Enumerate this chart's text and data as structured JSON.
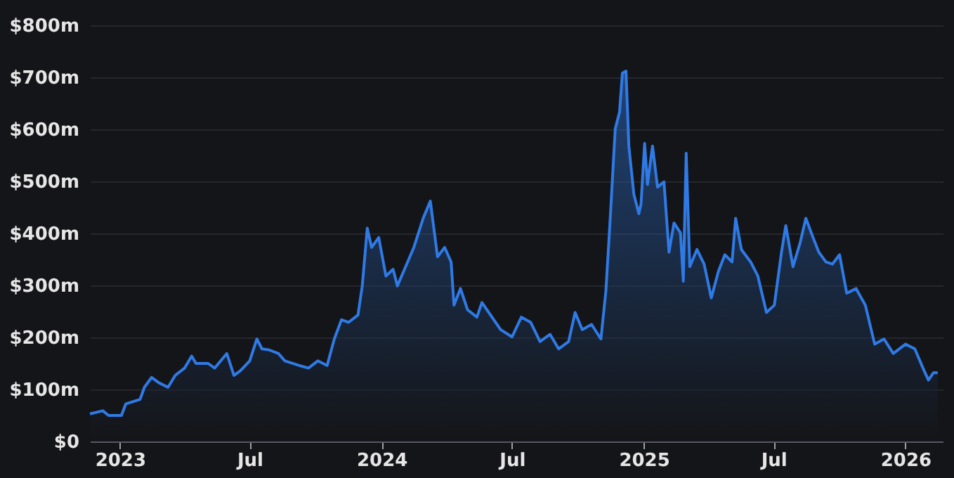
{
  "chart_data": {
    "type": "area",
    "x": [
      "2022-11-20",
      "2022-12-08",
      "2022-12-16",
      "2023-01-03",
      "2023-01-09",
      "2023-01-29",
      "2023-02-04",
      "2023-02-14",
      "2023-02-24",
      "2023-03-09",
      "2023-03-19",
      "2023-04-01",
      "2023-04-11",
      "2023-04-17",
      "2023-05-04",
      "2023-05-13",
      "2023-05-30",
      "2023-06-09",
      "2023-06-18",
      "2023-07-01",
      "2023-07-11",
      "2023-07-18",
      "2023-07-28",
      "2023-08-10",
      "2023-08-19",
      "2023-09-08",
      "2023-09-21",
      "2023-10-04",
      "2023-10-17",
      "2023-10-27",
      "2023-11-06",
      "2023-11-16",
      "2023-11-29",
      "2023-12-05",
      "2023-12-12",
      "2023-12-18",
      "2023-12-28",
      "2024-01-07",
      "2024-01-17",
      "2024-01-23",
      "2024-02-02",
      "2024-02-15",
      "2024-02-28",
      "2024-03-09",
      "2024-03-19",
      "2024-03-29",
      "2024-04-07",
      "2024-04-11",
      "2024-04-20",
      "2024-04-30",
      "2024-05-13",
      "2024-05-20",
      "2024-06-15",
      "2024-07-01",
      "2024-07-14",
      "2024-07-27",
      "2024-08-09",
      "2024-08-23",
      "2024-09-04",
      "2024-09-18",
      "2024-09-27",
      "2024-10-07",
      "2024-10-20",
      "2024-11-02",
      "2024-11-09",
      "2024-11-15",
      "2024-11-22",
      "2024-11-28",
      "2024-12-02",
      "2024-12-07",
      "2024-12-11",
      "2024-12-18",
      "2024-12-25",
      "2024-12-28",
      "2025-01-02",
      "2025-01-06",
      "2025-01-13",
      "2025-01-20",
      "2025-01-29",
      "2025-02-05",
      "2025-02-12",
      "2025-02-21",
      "2025-02-25",
      "2025-03-01",
      "2025-03-06",
      "2025-03-16",
      "2025-03-26",
      "2025-04-05",
      "2025-04-15",
      "2025-04-24",
      "2025-05-04",
      "2025-05-09",
      "2025-05-17",
      "2025-05-30",
      "2025-06-09",
      "2025-06-21",
      "2025-07-02",
      "2025-07-12",
      "2025-07-18",
      "2025-07-28",
      "2025-08-07",
      "2025-08-15",
      "2025-08-25",
      "2025-09-02",
      "2025-09-12",
      "2025-09-21",
      "2025-10-01",
      "2025-10-11",
      "2025-10-24",
      "2025-11-06",
      "2025-11-19",
      "2025-12-02",
      "2025-12-15",
      "2026-01-01",
      "2026-01-14",
      "2026-01-27",
      "2026-02-02",
      "2026-02-09",
      "2026-02-15"
    ],
    "series": [
      {
        "color": "#2f7ae5",
        "values": [
          53,
          59,
          50,
          50,
          72,
          81,
          104,
          123,
          113,
          104,
          127,
          141,
          164,
          150,
          150,
          141,
          169,
          127,
          136,
          155,
          197,
          178,
          176,
          169,
          155,
          146,
          141,
          155,
          146,
          197,
          234,
          229,
          243,
          299,
          410,
          373,
          392,
          318,
          331,
          299,
          331,
          373,
          429,
          462,
          355,
          373,
          345,
          262,
          294,
          253,
          239,
          267,
          215,
          201,
          239,
          229,
          192,
          206,
          178,
          192,
          248,
          215,
          225,
          197,
          290,
          429,
          601,
          633,
          708,
          712,
          568,
          475,
          438,
          457,
          573,
          494,
          568,
          489,
          499,
          364,
          420,
          401,
          308,
          554,
          336,
          369,
          341,
          276,
          327,
          359,
          345,
          429,
          369,
          345,
          318,
          248,
          262,
          364,
          415,
          336,
          382,
          429,
          392,
          364,
          345,
          341,
          359,
          285,
          294,
          262,
          187,
          197,
          169,
          187,
          178,
          136,
          118,
          132,
          132
        ]
      }
    ],
    "xlim": [
      "2022-11-20",
      "2026-02-22"
    ],
    "xticks": [
      {
        "value": "2023-01-01",
        "label": "2023"
      },
      {
        "value": "2023-07-01",
        "label": "Jul"
      },
      {
        "value": "2024-01-01",
        "label": "2024"
      },
      {
        "value": "2024-07-01",
        "label": "Jul"
      },
      {
        "value": "2025-01-01",
        "label": "2025"
      },
      {
        "value": "2025-07-01",
        "label": "Jul"
      },
      {
        "value": "2026-01-01",
        "label": "2026"
      }
    ],
    "ylim": [
      0,
      800
    ],
    "yticks": [
      {
        "value": 0,
        "label": "$0"
      },
      {
        "value": 100,
        "label": "$100m"
      },
      {
        "value": 200,
        "label": "$200m"
      },
      {
        "value": 300,
        "label": "$300m"
      },
      {
        "value": 400,
        "label": "$400m"
      },
      {
        "value": 500,
        "label": "$500m"
      },
      {
        "value": 600,
        "label": "$600m"
      },
      {
        "value": 700,
        "label": "$700m"
      },
      {
        "value": 800,
        "label": "$800m"
      }
    ],
    "grid": "y"
  }
}
